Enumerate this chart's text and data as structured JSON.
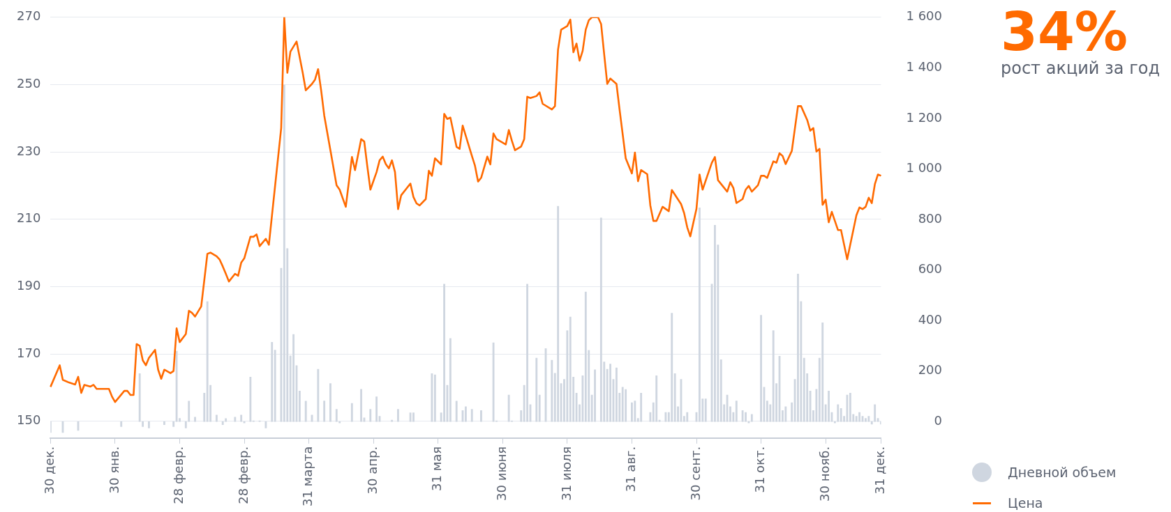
{
  "chart_data": {
    "type": "line",
    "title": "34%",
    "subtitle": "рост акций за год",
    "categories": [
      "30 дек.",
      null,
      null,
      null,
      null,
      null,
      null,
      null,
      null,
      null,
      null,
      null,
      null,
      null,
      null,
      null,
      null,
      null,
      null,
      null,
      null,
      "30 янв.",
      null,
      null,
      null,
      null,
      null,
      null,
      null,
      null,
      null,
      null,
      null,
      null,
      null,
      null,
      null,
      null,
      null,
      null,
      null,
      null,
      "28 февр.",
      null,
      null,
      null,
      null,
      null,
      null,
      null,
      null,
      null,
      null,
      null,
      null,
      null,
      null,
      null,
      null,
      null,
      null,
      null,
      null,
      "28 февр.",
      null,
      null,
      null,
      null,
      null,
      null,
      null,
      null,
      null,
      null,
      null,
      null,
      null,
      null,
      null,
      null,
      null,
      null,
      null,
      null,
      "31 марта",
      null,
      null,
      null,
      null,
      null,
      null,
      null,
      null,
      null,
      null,
      null,
      null,
      null,
      null,
      null,
      null,
      null,
      null,
      null,
      null,
      "30 апр.",
      null,
      null,
      null,
      null,
      null,
      null,
      null,
      null,
      null,
      null,
      null,
      null,
      null,
      null,
      null,
      null,
      null,
      null,
      null,
      null,
      "31 мая",
      null,
      null,
      null,
      null,
      null,
      null,
      null,
      null,
      null,
      null,
      null,
      null,
      null,
      null,
      null,
      null,
      null,
      null,
      null,
      null,
      "30 июня",
      null,
      null,
      null,
      null,
      null,
      null,
      null,
      null,
      null,
      null,
      null,
      null,
      null,
      null,
      null,
      null,
      null,
      null,
      null,
      null,
      "31 июля",
      null,
      null,
      null,
      null,
      null,
      null,
      null,
      null,
      null,
      null,
      null,
      null,
      null,
      null,
      null,
      null,
      null,
      null,
      null,
      null,
      "31 авг.",
      null,
      null,
      null,
      null,
      null,
      null,
      null,
      null,
      null,
      null,
      null,
      null,
      null,
      null,
      null,
      null,
      null,
      null,
      null,
      null,
      "30 сент.",
      null,
      null,
      null,
      null,
      null,
      null,
      null,
      null,
      null,
      null,
      null,
      null,
      null,
      null,
      null,
      null,
      null,
      null,
      null,
      null,
      "31 окт.",
      null,
      null,
      null,
      null,
      null,
      null,
      null,
      null,
      null,
      null,
      null,
      null,
      null,
      null,
      null,
      null,
      null,
      null,
      null,
      null,
      "30 нояб.",
      null,
      null,
      null,
      null,
      null,
      null,
      null,
      null,
      null,
      null,
      null,
      null,
      null,
      null,
      null,
      null,
      null,
      "31 дек."
    ],
    "ylim": [
      145,
      270
    ],
    "yticks": [
      150,
      170,
      190,
      210,
      230,
      250,
      270
    ],
    "y2lim": [
      -65,
      1600
    ],
    "y2ticks": [
      0,
      200,
      400,
      600,
      800,
      {
        "value": 1000,
        "label": "1 000"
      },
      {
        "value": 1200,
        "label": "1 200"
      },
      {
        "value": 1400,
        "label": "1 400"
      },
      {
        "value": 1600,
        "label": "1 600"
      }
    ],
    "grid": "y",
    "legend": "bottom right",
    "series": [
      {
        "name": "Дневной объем",
        "type": "bar",
        "axis": "y2",
        "color": "#cfd6e0",
        "values": [
          -43,
          null,
          null,
          null,
          -43,
          null,
          null,
          null,
          null,
          -35,
          null,
          null,
          null,
          null,
          null,
          null,
          null,
          null,
          null,
          null,
          null,
          null,
          null,
          -20,
          null,
          null,
          null,
          null,
          null,
          190,
          -20,
          null,
          -25,
          null,
          null,
          null,
          null,
          -12,
          null,
          null,
          -20,
          279,
          13,
          null,
          -25,
          81,
          null,
          18,
          null,
          null,
          113,
          475,
          144,
          null,
          26,
          null,
          -12,
          12,
          null,
          null,
          18,
          null,
          26,
          -5,
          null,
          176,
          3,
          null,
          3,
          null,
          -25,
          null,
          314,
          283,
          null,
          607,
          1332,
          685,
          260,
          345,
          222,
          121,
          null,
          81,
          null,
          26,
          null,
          207,
          null,
          82,
          null,
          151,
          null,
          49,
          -5,
          null,
          null,
          null,
          72,
          null,
          null,
          128,
          15,
          null,
          49,
          null,
          98,
          21,
          null,
          null,
          null,
          6,
          null,
          49,
          null,
          null,
          null,
          35,
          35,
          null,
          null,
          null,
          null,
          null,
          190,
          185,
          null,
          35,
          544,
          144,
          329,
          null,
          81,
          null,
          44,
          59,
          null,
          49,
          null,
          null,
          44,
          null,
          null,
          null,
          312,
          3,
          null,
          null,
          null,
          105,
          3,
          null,
          null,
          44,
          144,
          544,
          67,
          null,
          251,
          105,
          null,
          289,
          null,
          243,
          191,
          852,
          151,
          167,
          360,
          414,
          176,
          113,
          67,
          182,
          513,
          282,
          105,
          205,
          null,
          806,
          236,
          207,
          228,
          167,
          213,
          113,
          136,
          127,
          null,
          75,
          82,
          13,
          113,
          null,
          null,
          36,
          75,
          182,
          6,
          null,
          36,
          36,
          429,
          190,
          59,
          167,
          21,
          36,
          null,
          null,
          36,
          846,
          90,
          90,
          null,
          544,
          777,
          699,
          245,
          67,
          105,
          59,
          36,
          82,
          null,
          44,
          36,
          -5,
          29,
          null,
          null,
          421,
          136,
          82,
          67,
          360,
          151,
          259,
          44,
          59,
          null,
          75,
          167,
          584,
          475,
          251,
          190,
          121,
          44,
          128,
          251,
          391,
          67,
          121,
          36,
          -5,
          67,
          52,
          21,
          105,
          113,
          29,
          21,
          36,
          21,
          13,
          21,
          -10,
          67,
          13,
          -10
        ]
      },
      {
        "name": "Цена",
        "type": "line",
        "color": "#ff6a00",
        "values": [
          160.2,
          null,
          null,
          166.6,
          162.3,
          null,
          161.5,
          null,
          160.9,
          163.2,
          158.4,
          160.8,
          null,
          160.3,
          160.8,
          159.6,
          null,
          null,
          null,
          159.6,
          157.3,
          155.7,
          null,
          null,
          159.0,
          159.0,
          157.8,
          157.8,
          172.9,
          172.4,
          168.1,
          166.6,
          168.8,
          null,
          171.2,
          165.3,
          162.6,
          165.3,
          null,
          164.3,
          164.9,
          177.6,
          173.5,
          null,
          175.9,
          182.8,
          182.2,
          181.1,
          null,
          184.1,
          null,
          199.7,
          200.1,
          null,
          199.0,
          198.0,
          196.0,
          193.8,
          191.5,
          null,
          193.8,
          193.2,
          197.1,
          198.4,
          null,
          204.8,
          204.8,
          205.5,
          202.0,
          null,
          204.2,
          202.4,
          211.1,
          null,
          null,
          237.1,
          270.0,
          253.5,
          259.8,
          null,
          262.8,
          null,
          253.5,
          248.3,
          null,
          250.2,
          251.5,
          254.6,
          248.2,
          240.8,
          null,
          230.5,
          null,
          220.1,
          218.8,
          null,
          213.7,
          null,
          228.5,
          224.6,
          null,
          233.8,
          233.1,
          225.7,
          218.8,
          null,
          224.0,
          227.5,
          228.6,
          226.4,
          225.1,
          227.5,
          224.0,
          213.0,
          217.1,
          null,
          null,
          220.6,
          216.6,
          214.7,
          214.1,
          null,
          216.0,
          224.4,
          222.9,
          228.1,
          null,
          226.3,
          241.3,
          239.8,
          240.2,
          null,
          231.5,
          230.9,
          237.8,
          234.8,
          null,
          228.8,
          225.9,
          221.2,
          222.3,
          null,
          228.6,
          226.3,
          235.5,
          233.8,
          null,
          null,
          232.2,
          236.5,
          233.3,
          230.5,
          null,
          231.6,
          233.8,
          246.4,
          246.0,
          null,
          246.6,
          247.7,
          244.3,
          null,
          null,
          242.6,
          243.6,
          260.4,
          266.3,
          null,
          267.4,
          269.3,
          259.6,
          262.2,
          257.1,
          260.0,
          266.3,
          269.1,
          270.0,
          null,
          270.0,
          268.0,
          259.0,
          250.2,
          251.8,
          null,
          250.2,
          242.6,
          null,
          228.1,
          null,
          223.6,
          229.8,
          221.3,
          224.6,
          null,
          223.4,
          214.1,
          209.5,
          209.5,
          null,
          213.7,
          null,
          212.4,
          218.7,
          null,
          null,
          214.5,
          211.8,
          207.6,
          204.9,
          null,
          213.1,
          223.3,
          218.8,
          null,
          null,
          226.8,
          228.5,
          221.6,
          null,
          null,
          218.2,
          221.0,
          219.3,
          214.8,
          null,
          216.0,
          218.8,
          219.9,
          218.2,
          null,
          220.1,
          222.9,
          222.9,
          222.3,
          null,
          227.2,
          226.8,
          229.6,
          228.8,
          226.4,
          null,
          230.3,
          null,
          243.6,
          243.6,
          null,
          239.5,
          236.3,
          237.1,
          230.1,
          230.9,
          214.3,
          215.8,
          209.1,
          212.2,
          null,
          206.8,
          206.8,
          null,
          198.1,
          null,
          null,
          211.2,
          213.5,
          213.0,
          213.7,
          216.4,
          214.8,
          220.4,
          223.3,
          222.9
        ]
      }
    ]
  }
}
